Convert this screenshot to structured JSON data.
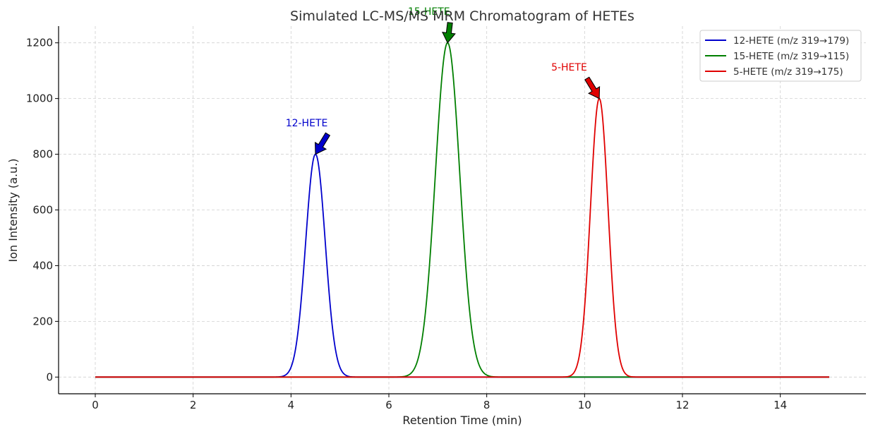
{
  "chart_data": {
    "type": "line",
    "title": "Simulated LC-MS/MS MRM Chromatogram of HETEs",
    "xlabel": "Retention Time (min)",
    "ylabel": "Ion Intensity (a.u.)",
    "xlim": [
      -0.75,
      15.75
    ],
    "ylim": [
      -60,
      1260
    ],
    "xticks": [
      0,
      2,
      4,
      6,
      8,
      10,
      12,
      14
    ],
    "yticks": [
      0,
      200,
      400,
      600,
      800,
      1000,
      1200
    ],
    "x_range": [
      0,
      15
    ],
    "grid": true,
    "legend_position": "top-right",
    "series": [
      {
        "name": "12-HETE (m/z 319→179)",
        "color": "#0000cc",
        "peak_time": 4.5,
        "peak_height": 800,
        "sigma": 0.2
      },
      {
        "name": "15-HETE (m/z 319→115)",
        "color": "#007f00",
        "peak_time": 7.2,
        "peak_height": 1200,
        "sigma": 0.25
      },
      {
        "name": "5-HETE (m/z 319→175)",
        "color": "#e00000",
        "peak_time": 10.3,
        "peak_height": 1000,
        "sigma": 0.18
      }
    ],
    "annotations": [
      {
        "text": "12-HETE",
        "color": "#0000cc",
        "x": 4.5,
        "y": 800,
        "text_x": 4.75,
        "text_y": 900
      },
      {
        "text": "15-HETE",
        "color": "#007f00",
        "x": 7.2,
        "y": 1200,
        "text_x": 7.25,
        "text_y": 1300
      },
      {
        "text": "5-HETE",
        "color": "#e00000",
        "x": 10.3,
        "y": 1000,
        "text_x": 10.05,
        "text_y": 1100
      }
    ]
  }
}
